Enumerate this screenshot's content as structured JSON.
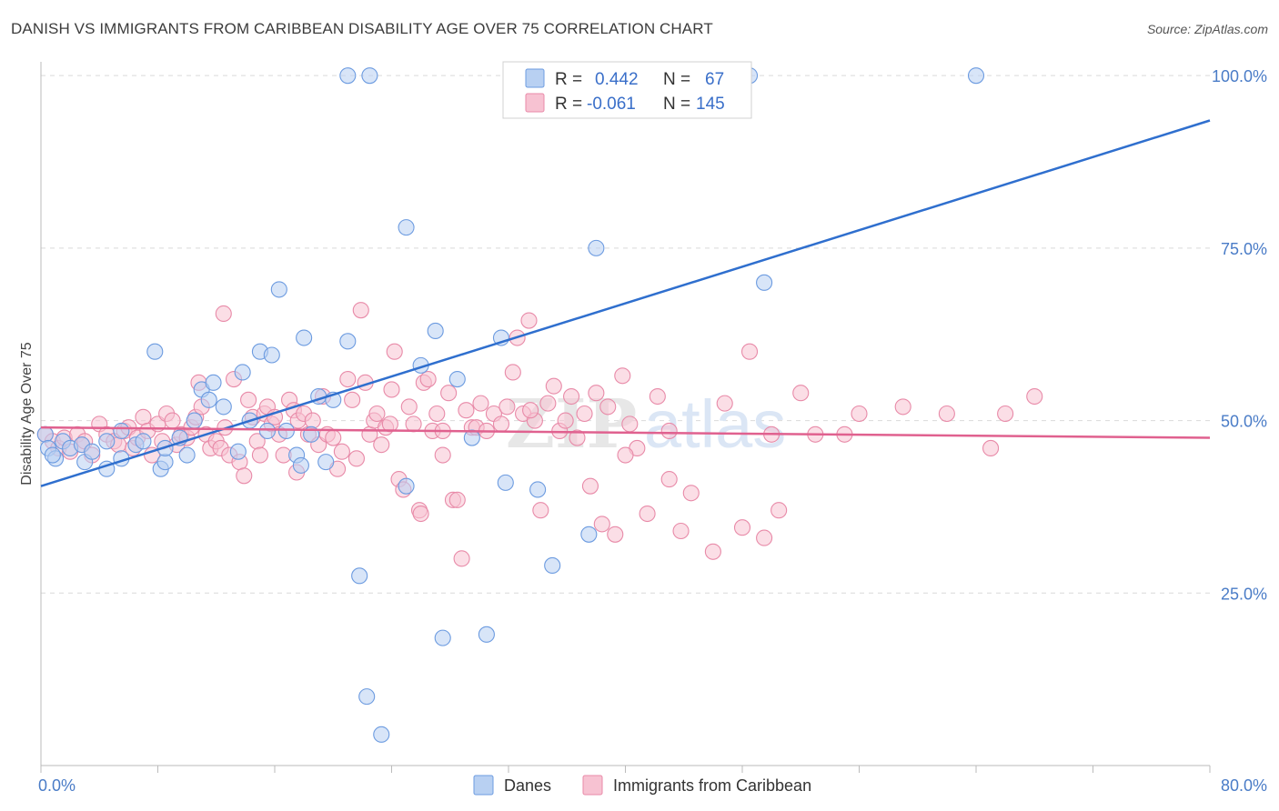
{
  "title": "DANISH VS IMMIGRANTS FROM CARIBBEAN DISABILITY AGE OVER 75 CORRELATION CHART",
  "source": "Source: ZipAtlas.com",
  "watermark": {
    "zip": "ZIP",
    "atlas": "atlas"
  },
  "colors": {
    "danes_fill": "#b8d0f2",
    "danes_stroke": "#6c9be0",
    "danes_line": "#2f6fce",
    "carib_fill": "#f7c2d2",
    "carib_stroke": "#e88aa8",
    "carib_line": "#e0618f",
    "grid": "#d9d9d9",
    "axis_text": "#4a7cc7"
  },
  "stats": {
    "r_label": "R =",
    "n_label": "N =",
    "danes": {
      "r": "0.442",
      "n": "67"
    },
    "carib": {
      "r": "-0.061",
      "n": "145"
    }
  },
  "chart_data": {
    "type": "scatter",
    "xlabel": "",
    "ylabel": "Disability Age Over 75",
    "xlim": [
      0,
      80
    ],
    "ylim": [
      0,
      102
    ],
    "x_tick_labels": [
      "0.0%",
      "80.0%"
    ],
    "y_ticks": [
      25,
      50,
      75,
      100
    ],
    "y_tick_labels": [
      "25.0%",
      "50.0%",
      "75.0%",
      "100.0%"
    ],
    "grid": true,
    "legend_position": "bottom-center",
    "series": [
      {
        "name": "Danes",
        "trend": {
          "x": [
            0,
            80
          ],
          "y": [
            40.5,
            93.5
          ]
        },
        "points": [
          [
            0.3,
            48
          ],
          [
            0.5,
            46
          ],
          [
            1,
            44.5
          ],
          [
            1.5,
            47
          ],
          [
            2,
            46
          ],
          [
            2.8,
            46.5
          ],
          [
            3,
            44
          ],
          [
            3.5,
            45.5
          ],
          [
            4.5,
            43
          ],
          [
            5.5,
            44.5
          ],
          [
            5.5,
            48.5
          ],
          [
            6.5,
            46.5
          ],
          [
            7,
            47
          ],
          [
            7.8,
            60
          ],
          [
            8.2,
            43
          ],
          [
            8.5,
            44
          ],
          [
            9.5,
            47.5
          ],
          [
            10,
            45
          ],
          [
            10.5,
            50
          ],
          [
            11,
            54.5
          ],
          [
            11.5,
            53
          ],
          [
            11.8,
            55.5
          ],
          [
            12.5,
            52
          ],
          [
            13.5,
            45.5
          ],
          [
            13.8,
            57
          ],
          [
            14.3,
            50
          ],
          [
            15,
            60
          ],
          [
            15.5,
            48.5
          ],
          [
            15.8,
            59.5
          ],
          [
            16.3,
            69
          ],
          [
            16.8,
            48.5
          ],
          [
            17.5,
            45
          ],
          [
            17.8,
            43.5
          ],
          [
            18,
            62
          ],
          [
            18.5,
            48
          ],
          [
            19,
            53.5
          ],
          [
            19.5,
            44
          ],
          [
            20,
            53
          ],
          [
            21,
            61.5
          ],
          [
            21.8,
            27.5
          ],
          [
            22.3,
            10
          ],
          [
            23.3,
            4.5
          ],
          [
            25,
            78
          ],
          [
            25,
            40.5
          ],
          [
            26,
            58
          ],
          [
            27,
            63
          ],
          [
            27.5,
            18.5
          ],
          [
            28.5,
            56
          ],
          [
            29.5,
            47.5
          ],
          [
            30.5,
            19
          ],
          [
            31.5,
            62
          ],
          [
            31.8,
            41
          ],
          [
            34,
            40
          ],
          [
            35,
            29
          ],
          [
            37.5,
            33.5
          ],
          [
            38,
            75
          ],
          [
            49.5,
            70
          ],
          [
            21,
            100
          ],
          [
            22.5,
            100
          ],
          [
            39,
            100
          ],
          [
            47.5,
            100
          ],
          [
            48,
            100
          ],
          [
            48.5,
            100
          ],
          [
            64,
            100
          ],
          [
            0.8,
            45
          ],
          [
            4.5,
            47
          ],
          [
            8.5,
            46
          ]
        ]
      },
      {
        "name": "Immigrants from Caribbean",
        "trend": {
          "x": [
            0,
            80
          ],
          "y": [
            49,
            47.5
          ]
        },
        "points": [
          [
            0.3,
            48
          ],
          [
            0.8,
            47
          ],
          [
            1.2,
            46
          ],
          [
            1.6,
            47.5
          ],
          [
            2,
            45.5
          ],
          [
            2.5,
            48
          ],
          [
            2.8,
            46.5
          ],
          [
            3,
            47
          ],
          [
            3.5,
            45
          ],
          [
            4,
            49.5
          ],
          [
            4.5,
            48
          ],
          [
            5,
            47
          ],
          [
            5.3,
            46.5
          ],
          [
            5.7,
            48.5
          ],
          [
            6,
            49
          ],
          [
            6.3,
            46
          ],
          [
            6.6,
            47.5
          ],
          [
            7,
            50.5
          ],
          [
            7.3,
            48.5
          ],
          [
            7.6,
            45
          ],
          [
            8,
            49.5
          ],
          [
            8.3,
            47
          ],
          [
            8.6,
            51
          ],
          [
            9,
            50
          ],
          [
            9.3,
            46.5
          ],
          [
            9.6,
            48
          ],
          [
            10,
            47.5
          ],
          [
            10.3,
            49
          ],
          [
            10.6,
            50.5
          ],
          [
            10.8,
            55.5
          ],
          [
            11,
            52
          ],
          [
            11.3,
            48
          ],
          [
            11.6,
            46
          ],
          [
            12,
            47
          ],
          [
            12.3,
            46
          ],
          [
            12.6,
            49
          ],
          [
            12.9,
            45
          ],
          [
            13.2,
            56
          ],
          [
            13.6,
            44
          ],
          [
            13.9,
            42
          ],
          [
            14.2,
            53
          ],
          [
            14.5,
            50.5
          ],
          [
            14.8,
            47
          ],
          [
            15,
            45
          ],
          [
            15.3,
            51
          ],
          [
            15.5,
            52
          ],
          [
            15.8,
            49.5
          ],
          [
            16,
            50.5
          ],
          [
            16.3,
            48
          ],
          [
            16.6,
            45
          ],
          [
            17,
            53
          ],
          [
            17.3,
            51.5
          ],
          [
            17.6,
            50
          ],
          [
            18,
            51
          ],
          [
            18.3,
            48
          ],
          [
            18.6,
            50
          ],
          [
            19,
            46.5
          ],
          [
            19.3,
            53.5
          ],
          [
            19.6,
            48
          ],
          [
            20,
            47.5
          ],
          [
            20.3,
            43
          ],
          [
            20.6,
            45.5
          ],
          [
            21,
            56
          ],
          [
            21.3,
            53
          ],
          [
            21.6,
            44.5
          ],
          [
            21.9,
            66
          ],
          [
            22.2,
            55.5
          ],
          [
            22.5,
            48
          ],
          [
            22.8,
            50
          ],
          [
            23,
            51
          ],
          [
            23.3,
            46.5
          ],
          [
            23.6,
            49
          ],
          [
            23.9,
            49.5
          ],
          [
            24.2,
            60
          ],
          [
            24.5,
            41.5
          ],
          [
            24.8,
            40
          ],
          [
            25.2,
            52
          ],
          [
            25.5,
            49.5
          ],
          [
            25.9,
            37
          ],
          [
            26.2,
            55.5
          ],
          [
            26.5,
            56
          ],
          [
            26.8,
            48.5
          ],
          [
            27.1,
            51
          ],
          [
            27.5,
            45
          ],
          [
            27.9,
            54
          ],
          [
            28.2,
            38.5
          ],
          [
            28.5,
            38.5
          ],
          [
            28.8,
            30
          ],
          [
            29.1,
            51.5
          ],
          [
            29.5,
            49
          ],
          [
            29.8,
            49
          ],
          [
            30.1,
            52.5
          ],
          [
            30.5,
            48.5
          ],
          [
            31,
            51
          ],
          [
            31.5,
            49.5
          ],
          [
            31.9,
            52
          ],
          [
            32.3,
            57
          ],
          [
            32.6,
            62
          ],
          [
            33,
            51
          ],
          [
            33.4,
            64.5
          ],
          [
            33.8,
            50
          ],
          [
            34.2,
            37
          ],
          [
            34.7,
            52.5
          ],
          [
            35.1,
            55
          ],
          [
            35.5,
            48.5
          ],
          [
            35.9,
            50
          ],
          [
            36.3,
            53.5
          ],
          [
            36.7,
            47.5
          ],
          [
            37.2,
            51
          ],
          [
            37.6,
            40.5
          ],
          [
            38,
            54
          ],
          [
            38.4,
            35
          ],
          [
            38.8,
            52
          ],
          [
            39.3,
            33.5
          ],
          [
            39.8,
            56.5
          ],
          [
            40.3,
            49.5
          ],
          [
            40.8,
            46
          ],
          [
            41.5,
            36.5
          ],
          [
            42.2,
            53.5
          ],
          [
            43,
            41.5
          ],
          [
            43.8,
            34
          ],
          [
            44.5,
            39.5
          ],
          [
            46,
            31
          ],
          [
            46.8,
            52.5
          ],
          [
            48,
            34.5
          ],
          [
            48.5,
            60
          ],
          [
            49.5,
            33
          ],
          [
            50,
            48
          ],
          [
            50.5,
            37
          ],
          [
            52,
            54
          ],
          [
            53,
            48
          ],
          [
            55,
            48
          ],
          [
            56,
            51
          ],
          [
            59,
            52
          ],
          [
            62,
            51
          ],
          [
            65,
            46
          ],
          [
            66,
            51
          ],
          [
            68,
            53.5
          ],
          [
            17.5,
            42.5
          ],
          [
            40,
            45
          ],
          [
            43,
            48.5
          ],
          [
            27.5,
            48.5
          ],
          [
            24,
            54.5
          ],
          [
            12.5,
            65.5
          ],
          [
            33.5,
            51.5
          ],
          [
            26,
            36.5
          ]
        ]
      }
    ]
  }
}
